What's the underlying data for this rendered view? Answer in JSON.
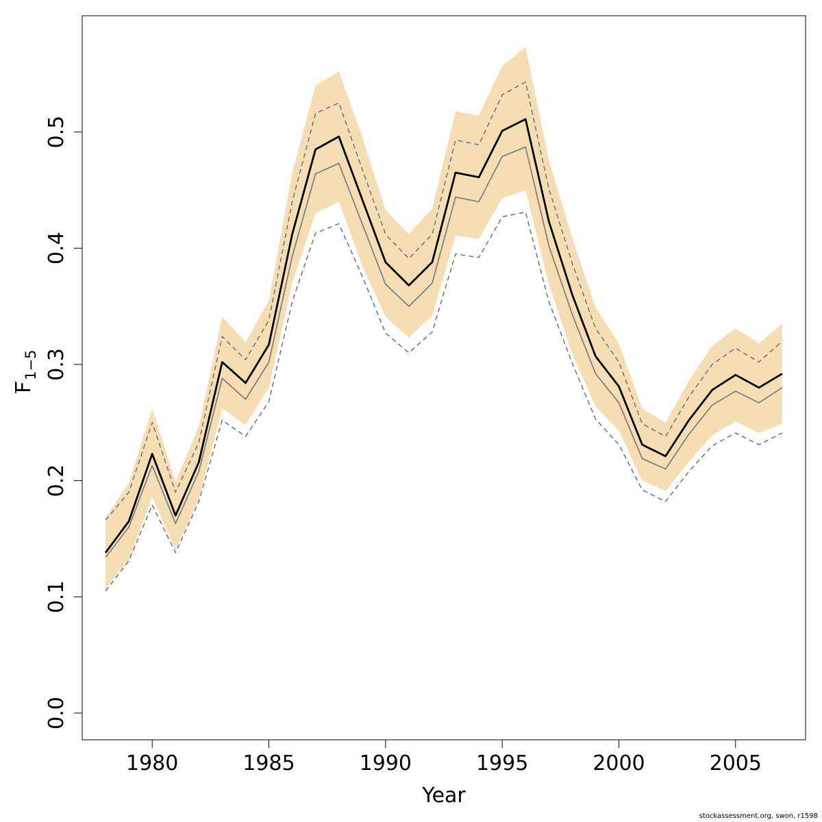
{
  "chart_data": {
    "type": "line",
    "xlabel": "Year",
    "ylabel": "F1-5",
    "ylabel_main": "F",
    "ylabel_sub": "1−5",
    "xlim": [
      1977.0,
      2008.0
    ],
    "ylim": [
      -0.023,
      0.6
    ],
    "xticks": [
      "1980",
      "1985",
      "1990",
      "1995",
      "2000",
      "2005"
    ],
    "yticks": [
      "0.0",
      "0.1",
      "0.2",
      "0.3",
      "0.4",
      "0.5"
    ],
    "grid": false,
    "colors": {
      "band": "#f5deb3",
      "estimate": "#000000",
      "reference": "#808080",
      "reference_bounds": "#707070"
    },
    "x": [
      1978,
      1979,
      1980,
      1981,
      1982,
      1983,
      1984,
      1985,
      1986,
      1987,
      1988,
      1989,
      1990,
      1991,
      1992,
      1993,
      1994,
      1995,
      1996,
      1997,
      1998,
      1999,
      2000,
      2001,
      2002,
      2003,
      2004,
      2005,
      2006,
      2007
    ],
    "series": [
      {
        "role": "band_upper",
        "values": [
          0.168,
          0.198,
          0.262,
          0.199,
          0.247,
          0.341,
          0.319,
          0.355,
          0.465,
          0.54,
          0.552,
          0.496,
          0.433,
          0.412,
          0.434,
          0.518,
          0.514,
          0.557,
          0.573,
          0.476,
          0.409,
          0.349,
          0.318,
          0.262,
          0.25,
          0.286,
          0.316,
          0.331,
          0.318,
          0.335
        ]
      },
      {
        "role": "band_lower",
        "values": [
          0.107,
          0.132,
          0.186,
          0.14,
          0.184,
          0.262,
          0.248,
          0.28,
          0.37,
          0.43,
          0.44,
          0.385,
          0.341,
          0.323,
          0.342,
          0.411,
          0.408,
          0.443,
          0.45,
          0.369,
          0.309,
          0.264,
          0.243,
          0.2,
          0.191,
          0.216,
          0.239,
          0.251,
          0.241,
          0.249
        ]
      },
      {
        "role": "estimate",
        "values": [
          0.138,
          0.165,
          0.223,
          0.17,
          0.216,
          0.302,
          0.284,
          0.317,
          0.412,
          0.485,
          0.496,
          0.442,
          0.388,
          0.368,
          0.388,
          0.465,
          0.461,
          0.501,
          0.511,
          0.423,
          0.36,
          0.307,
          0.281,
          0.231,
          0.221,
          0.252,
          0.278,
          0.291,
          0.28,
          0.292
        ]
      },
      {
        "role": "reference",
        "values": [
          0.134,
          0.16,
          0.213,
          0.163,
          0.208,
          0.288,
          0.27,
          0.302,
          0.393,
          0.464,
          0.473,
          0.421,
          0.369,
          0.35,
          0.37,
          0.444,
          0.44,
          0.479,
          0.487,
          0.402,
          0.343,
          0.292,
          0.267,
          0.219,
          0.21,
          0.24,
          0.265,
          0.277,
          0.267,
          0.28
        ]
      },
      {
        "role": "reference_upper",
        "values": [
          0.166,
          0.19,
          0.25,
          0.19,
          0.233,
          0.324,
          0.304,
          0.338,
          0.44,
          0.516,
          0.525,
          0.468,
          0.412,
          0.391,
          0.412,
          0.493,
          0.489,
          0.532,
          0.543,
          0.451,
          0.387,
          0.331,
          0.302,
          0.249,
          0.238,
          0.272,
          0.3,
          0.314,
          0.302,
          0.32
        ]
      },
      {
        "role": "reference_lower",
        "values": [
          0.105,
          0.131,
          0.179,
          0.138,
          0.182,
          0.252,
          0.238,
          0.268,
          0.354,
          0.413,
          0.421,
          0.376,
          0.327,
          0.31,
          0.328,
          0.395,
          0.392,
          0.427,
          0.431,
          0.354,
          0.301,
          0.253,
          0.231,
          0.192,
          0.182,
          0.208,
          0.23,
          0.241,
          0.231,
          0.241
        ]
      }
    ]
  },
  "footer_text": "stockassessment.org, swon, r1598"
}
